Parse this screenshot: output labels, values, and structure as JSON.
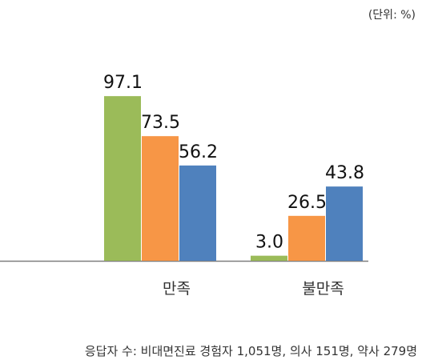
{
  "chart_data": {
    "type": "bar",
    "unit_label": "(단위: %)",
    "categories": [
      "만족",
      "불만족"
    ],
    "series": [
      {
        "color": "#9bbb59",
        "values": [
          97.1,
          3.0
        ]
      },
      {
        "color": "#f79646",
        "values": [
          73.5,
          26.5
        ]
      },
      {
        "color": "#4f81bd",
        "values": [
          56.2,
          43.8
        ]
      }
    ],
    "value_labels": [
      [
        "97.1",
        "3.0"
      ],
      [
        "73.5",
        "26.5"
      ],
      [
        "56.2",
        "43.8"
      ]
    ],
    "ylim": [
      0,
      100
    ],
    "grid": false,
    "legend": "none"
  },
  "footnote": "응답자 수: 비대면진료 경험자 1,051명, 의사 151명, 약사 279명"
}
